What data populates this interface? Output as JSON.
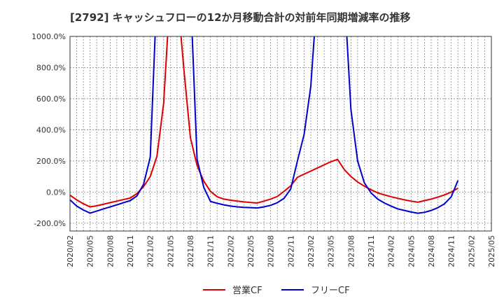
{
  "chart_data": {
    "type": "line",
    "title": "[2792]  キャッシュフローの12か月移動合計の対前年同期増減率の推移",
    "x": [
      "2020/02",
      "2020/05",
      "2020/08",
      "2020/11",
      "2021/02",
      "2021/05",
      "2021/08",
      "2021/11",
      "2022/02",
      "2022/05",
      "2022/08",
      "2022/11",
      "2023/02",
      "2023/05",
      "2023/08",
      "2023/11",
      "2024/02",
      "2024/05",
      "2024/08",
      "2024/11",
      "2025/02",
      "2025/05"
    ],
    "xlabel": "",
    "ylabel": "",
    "ylim": [
      -250,
      1000
    ],
    "yticks": [
      -200,
      0,
      200,
      400,
      600,
      800,
      1000
    ],
    "ytick_labels": [
      "-200.0%",
      "0.0%",
      "200.0%",
      "400.0%",
      "600.0%",
      "800.0%",
      "1000.0%"
    ],
    "grid": true,
    "legend_position": "bottom",
    "series": [
      {
        "name": "営業CF",
        "color": "#dd0000",
        "points": [
          [
            "2020/02",
            -20
          ],
          [
            "2020/03",
            -50
          ],
          [
            "2020/04",
            -75
          ],
          [
            "2020/05",
            -95
          ],
          [
            "2020/06",
            -88
          ],
          [
            "2020/07",
            -78
          ],
          [
            "2020/08",
            -68
          ],
          [
            "2020/09",
            -58
          ],
          [
            "2020/10",
            -48
          ],
          [
            "2020/11",
            -38
          ],
          [
            "2020/12",
            -10
          ],
          [
            "2021/01",
            35
          ],
          [
            "2021/02",
            100
          ],
          [
            "2021/03",
            230
          ],
          [
            "2021/04",
            570
          ],
          [
            "2021/05",
            1300
          ],
          [
            "2021/06",
            1300
          ],
          [
            "2021/07",
            800
          ],
          [
            "2021/08",
            350
          ],
          [
            "2021/09",
            170
          ],
          [
            "2021/10",
            70
          ],
          [
            "2021/11",
            5
          ],
          [
            "2021/12",
            -30
          ],
          [
            "2022/01",
            -45
          ],
          [
            "2022/02",
            -52
          ],
          [
            "2022/03",
            -58
          ],
          [
            "2022/04",
            -63
          ],
          [
            "2022/05",
            -67
          ],
          [
            "2022/06",
            -70
          ],
          [
            "2022/07",
            -58
          ],
          [
            "2022/08",
            -45
          ],
          [
            "2022/09",
            -28
          ],
          [
            "2022/10",
            5
          ],
          [
            "2022/11",
            40
          ],
          [
            "2022/12",
            95
          ],
          [
            "2023/01",
            115
          ],
          [
            "2023/02",
            135
          ],
          [
            "2023/03",
            155
          ],
          [
            "2023/04",
            175
          ],
          [
            "2023/05",
            195
          ],
          [
            "2023/06",
            210
          ],
          [
            "2023/07",
            145
          ],
          [
            "2023/08",
            100
          ],
          [
            "2023/09",
            65
          ],
          [
            "2023/10",
            38
          ],
          [
            "2023/11",
            15
          ],
          [
            "2023/12",
            -5
          ],
          [
            "2024/01",
            -18
          ],
          [
            "2024/02",
            -30
          ],
          [
            "2024/03",
            -40
          ],
          [
            "2024/04",
            -50
          ],
          [
            "2024/05",
            -58
          ],
          [
            "2024/06",
            -65
          ],
          [
            "2024/07",
            -55
          ],
          [
            "2024/08",
            -45
          ],
          [
            "2024/09",
            -32
          ],
          [
            "2024/10",
            -18
          ],
          [
            "2024/11",
            0
          ],
          [
            "2024/12",
            25
          ]
        ]
      },
      {
        "name": "フリーCF",
        "color": "#0000cc",
        "points": [
          [
            "2020/02",
            -50
          ],
          [
            "2020/03",
            -90
          ],
          [
            "2020/04",
            -115
          ],
          [
            "2020/05",
            -135
          ],
          [
            "2020/06",
            -122
          ],
          [
            "2020/07",
            -108
          ],
          [
            "2020/08",
            -95
          ],
          [
            "2020/09",
            -82
          ],
          [
            "2020/10",
            -68
          ],
          [
            "2020/11",
            -55
          ],
          [
            "2020/12",
            -25
          ],
          [
            "2021/01",
            50
          ],
          [
            "2021/02",
            225
          ],
          [
            "2021/03",
            1300
          ],
          [
            "2021/08",
            1300
          ],
          [
            "2021/09",
            210
          ],
          [
            "2021/10",
            30
          ],
          [
            "2021/11",
            -60
          ],
          [
            "2021/12",
            -72
          ],
          [
            "2022/01",
            -82
          ],
          [
            "2022/02",
            -90
          ],
          [
            "2022/03",
            -95
          ],
          [
            "2022/04",
            -98
          ],
          [
            "2022/05",
            -100
          ],
          [
            "2022/06",
            -102
          ],
          [
            "2022/07",
            -95
          ],
          [
            "2022/08",
            -85
          ],
          [
            "2022/09",
            -68
          ],
          [
            "2022/10",
            -40
          ],
          [
            "2022/11",
            20
          ],
          [
            "2022/12",
            200
          ],
          [
            "2023/01",
            370
          ],
          [
            "2023/02",
            680
          ],
          [
            "2023/03",
            1300
          ],
          [
            "2023/07",
            1300
          ],
          [
            "2023/08",
            530
          ],
          [
            "2023/09",
            200
          ],
          [
            "2023/10",
            60
          ],
          [
            "2023/11",
            -5
          ],
          [
            "2023/12",
            -45
          ],
          [
            "2024/01",
            -70
          ],
          [
            "2024/02",
            -90
          ],
          [
            "2024/03",
            -108
          ],
          [
            "2024/04",
            -118
          ],
          [
            "2024/05",
            -128
          ],
          [
            "2024/06",
            -136
          ],
          [
            "2024/07",
            -130
          ],
          [
            "2024/08",
            -118
          ],
          [
            "2024/09",
            -100
          ],
          [
            "2024/10",
            -75
          ],
          [
            "2024/11",
            -30
          ],
          [
            "2024/12",
            75
          ]
        ]
      }
    ]
  }
}
